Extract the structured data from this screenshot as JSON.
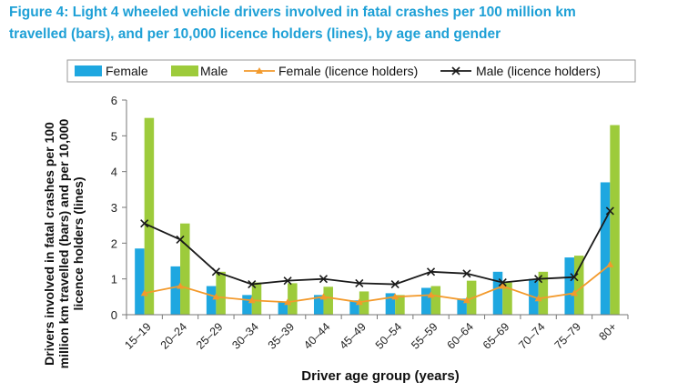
{
  "figure": {
    "title_line1": "Figure 4: Light 4 wheeled vehicle drivers involved in fatal crashes per 100 million km",
    "title_line2": "travelled (bars), and per 10,000 licence holders (lines), by age and gender"
  },
  "chart_data": {
    "type": "bar",
    "categories": [
      "15–19",
      "20–24",
      "25–29",
      "30–34",
      "35–39",
      "40–44",
      "45–49",
      "50–54",
      "55–59",
      "60–64",
      "65–69",
      "70–74",
      "75–79",
      "80+"
    ],
    "series": [
      {
        "name": "Female",
        "kind": "bar",
        "color": "#1ea7e0",
        "values": [
          1.85,
          1.35,
          0.8,
          0.55,
          0.35,
          0.55,
          0.4,
          0.6,
          0.75,
          0.45,
          1.2,
          1.0,
          1.6,
          3.7
        ]
      },
      {
        "name": "Male",
        "kind": "bar",
        "color": "#9dcb3b",
        "values": [
          5.5,
          2.55,
          1.2,
          0.9,
          0.88,
          0.78,
          0.65,
          0.55,
          0.8,
          0.95,
          0.9,
          1.2,
          1.65,
          5.3
        ]
      },
      {
        "name": "Female (licence holders)",
        "kind": "line",
        "marker": "triangle",
        "color": "#f39a2c",
        "values": [
          0.6,
          0.8,
          0.5,
          0.4,
          0.35,
          0.5,
          0.35,
          0.5,
          0.55,
          0.4,
          0.8,
          0.45,
          0.6,
          1.4
        ]
      },
      {
        "name": "Male (licence holders)",
        "kind": "line",
        "marker": "x",
        "color": "#1a1a1a",
        "values": [
          2.55,
          2.1,
          1.2,
          0.85,
          0.95,
          1.0,
          0.88,
          0.85,
          1.2,
          1.15,
          0.9,
          1.0,
          1.05,
          2.9
        ]
      }
    ],
    "xlabel": "Driver age group (years)",
    "ylabel_lines": [
      "Drivers involved in fatal crashes per 100",
      "million km travelled (bars) and per 10,000",
      "licence holders (lines)"
    ],
    "ylim": [
      0,
      6
    ],
    "yticks": [
      "0",
      "1",
      "2",
      "3",
      "4",
      "5",
      "6"
    ],
    "grid": false,
    "legend_position": "top"
  }
}
